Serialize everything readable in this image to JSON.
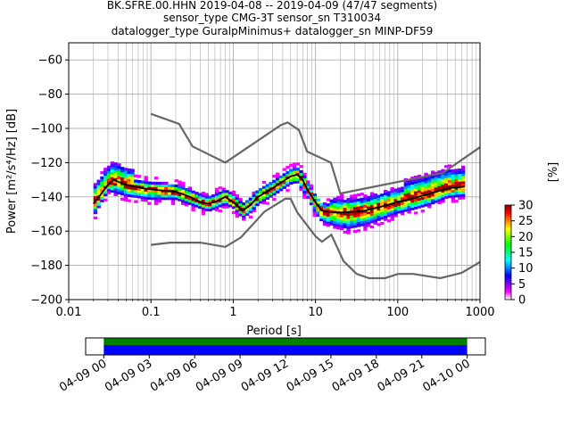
{
  "chart_data": {
    "type": "heatmap",
    "title_lines": [
      "BK.SFRE.00.HHN   2019-04-08 -- 2019-04-09  (47/47 segments)",
      "sensor_type CMG-3T sensor_sn T310034",
      "datalogger_type GuralpMinimus+ datalogger_sn MINP-DF59"
    ],
    "xlabel": "Period [s]",
    "ylabel": "Power [m²/s⁴/Hz] [dB]",
    "x_scale": "log",
    "xlim": [
      0.01,
      1000
    ],
    "ylim": [
      -200,
      -50
    ],
    "x_ticks": [
      {
        "value": 0.01,
        "label": "0.01"
      },
      {
        "value": 0.1,
        "label": "0.1"
      },
      {
        "value": 1,
        "label": "1"
      },
      {
        "value": 10,
        "label": "10"
      },
      {
        "value": 100,
        "label": "100"
      },
      {
        "value": 1000,
        "label": "1000"
      }
    ],
    "y_ticks": [
      {
        "value": -60,
        "label": "−60"
      },
      {
        "value": -80,
        "label": "−80"
      },
      {
        "value": -100,
        "label": "−100"
      },
      {
        "value": -120,
        "label": "−120"
      },
      {
        "value": -140,
        "label": "−140"
      },
      {
        "value": -160,
        "label": "−160"
      },
      {
        "value": -180,
        "label": "−180"
      },
      {
        "value": -200,
        "label": "−200"
      }
    ],
    "grid": true,
    "colorbar": {
      "label": "[%]",
      "range": [
        0,
        30
      ],
      "ticks": [
        {
          "value": 0,
          "label": "0"
        },
        {
          "value": 5,
          "label": "5"
        },
        {
          "value": 10,
          "label": "10"
        },
        {
          "value": 15,
          "label": "15"
        },
        {
          "value": 20,
          "label": "20"
        },
        {
          "value": 25,
          "label": "25"
        },
        {
          "value": 30,
          "label": "30"
        }
      ]
    },
    "noise_models": {
      "high": [
        [
          0.1,
          -91.5
        ],
        [
          0.22,
          -97.4
        ],
        [
          0.32,
          -110.5
        ],
        [
          0.8,
          -120
        ],
        [
          3.8,
          -98
        ],
        [
          4.6,
          -96.5
        ],
        [
          6.3,
          -101
        ],
        [
          7.9,
          -113.5
        ],
        [
          15.4,
          -120
        ],
        [
          20,
          -138
        ],
        [
          354,
          -126
        ],
        [
          1000,
          -111
        ]
      ],
      "low": [
        [
          0.1,
          -168
        ],
        [
          0.17,
          -166.7
        ],
        [
          0.4,
          -166.7
        ],
        [
          0.8,
          -169.2
        ],
        [
          1.24,
          -163.7
        ],
        [
          2.4,
          -148.6
        ],
        [
          4.3,
          -141.1
        ],
        [
          5,
          -141.1
        ],
        [
          6,
          -149
        ],
        [
          10,
          -163
        ],
        [
          12,
          -166.2
        ],
        [
          15.6,
          -162.1
        ],
        [
          21.9,
          -177.5
        ],
        [
          31.6,
          -185
        ],
        [
          45,
          -187.5
        ],
        [
          70,
          -187.5
        ],
        [
          101,
          -185
        ],
        [
          154,
          -185
        ],
        [
          328,
          -187.5
        ],
        [
          600,
          -184.4
        ],
        [
          1000,
          -178
        ]
      ]
    },
    "mean_curve": [
      [
        0.02,
        -144
      ],
      [
        0.025,
        -138
      ],
      [
        0.03,
        -133
      ],
      [
        0.035,
        -130
      ],
      [
        0.05,
        -133
      ],
      [
        0.08,
        -135
      ],
      [
        0.12,
        -136
      ],
      [
        0.2,
        -137
      ],
      [
        0.3,
        -140
      ],
      [
        0.4,
        -143
      ],
      [
        0.5,
        -144
      ],
      [
        0.6,
        -143
      ],
      [
        0.8,
        -140
      ],
      [
        1.0,
        -143
      ],
      [
        1.3,
        -148
      ],
      [
        1.6,
        -145
      ],
      [
        2,
        -140
      ],
      [
        3,
        -135
      ],
      [
        4,
        -131
      ],
      [
        5,
        -128
      ],
      [
        6,
        -127
      ],
      [
        7,
        -130
      ],
      [
        8,
        -136
      ],
      [
        10,
        -143
      ],
      [
        12,
        -148
      ],
      [
        16,
        -149
      ],
      [
        25,
        -149
      ],
      [
        40,
        -148
      ],
      [
        60,
        -146
      ],
      [
        100,
        -143
      ],
      [
        150,
        -141
      ],
      [
        250,
        -138
      ],
      [
        400,
        -135
      ],
      [
        650,
        -134
      ]
    ],
    "spread_curve": [
      [
        0.02,
        -140
      ],
      [
        0.03,
        -133
      ],
      [
        0.05,
        -136
      ],
      [
        0.1,
        -138
      ],
      [
        0.2,
        -138
      ],
      [
        0.3,
        -141
      ],
      [
        0.5,
        -145
      ],
      [
        0.8,
        -141
      ],
      [
        1.0,
        -143
      ],
      [
        1.3,
        -149
      ],
      [
        1.6,
        -146
      ],
      [
        2,
        -141
      ],
      [
        3,
        -136
      ],
      [
        5,
        -129
      ],
      [
        6,
        -128
      ],
      [
        8,
        -137
      ],
      [
        10,
        -146
      ],
      [
        12,
        -151
      ],
      [
        16,
        -153
      ],
      [
        25,
        -155
      ],
      [
        40,
        -153
      ],
      [
        60,
        -150
      ],
      [
        100,
        -146
      ],
      [
        150,
        -144
      ],
      [
        250,
        -141
      ],
      [
        400,
        -137
      ],
      [
        650,
        -136
      ]
    ],
    "data_availability": {
      "ticks": [
        {
          "value": 0,
          "label": "04-09 00"
        },
        {
          "value": 3,
          "label": "04-09 03"
        },
        {
          "value": 6,
          "label": "04-09 06"
        },
        {
          "value": 9,
          "label": "04-09 09"
        },
        {
          "value": 12,
          "label": "04-09 12"
        },
        {
          "value": 15,
          "label": "04-09 15"
        },
        {
          "value": 18,
          "label": "04-09 18"
        },
        {
          "value": 21,
          "label": "04-09 21"
        },
        {
          "value": 24,
          "label": "04-10 00"
        }
      ],
      "range_hours": [
        -1.2,
        25.2
      ],
      "coverage_hours": [
        0,
        24
      ],
      "colors": {
        "top": "#008000",
        "bottom": "#0000ff"
      }
    }
  },
  "colors": {
    "noise_model": "#666666",
    "mean": "#000000",
    "grid": "#b0b0b0",
    "colormap": [
      "#ffffff",
      "#ff00ff",
      "#8000ff",
      "#0000ff",
      "#0080ff",
      "#00ffff",
      "#00ff80",
      "#00ff00",
      "#80ff00",
      "#ffff00",
      "#ff8000",
      "#ff0000",
      "#8b0000"
    ]
  }
}
